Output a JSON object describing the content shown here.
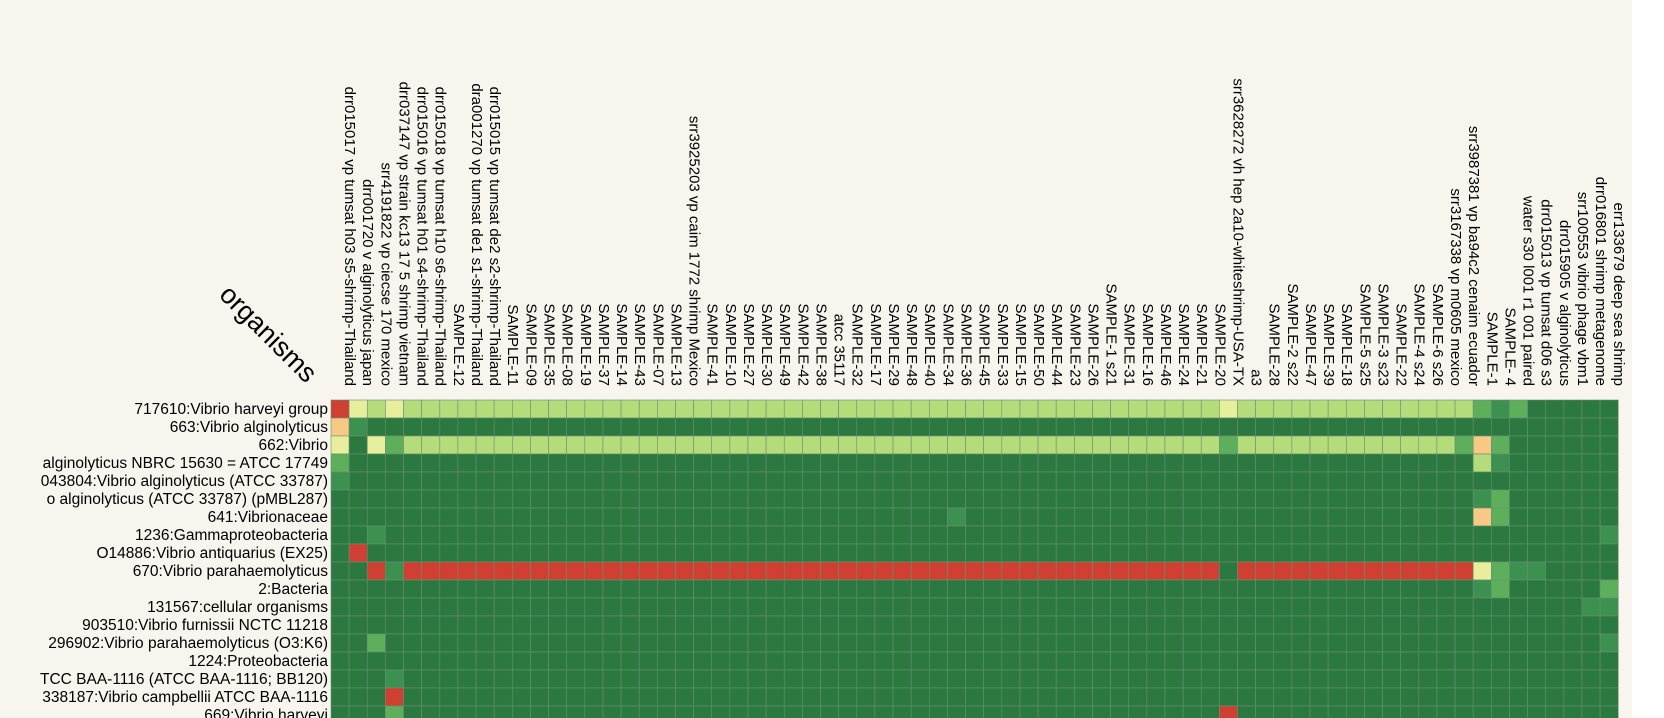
{
  "colors": {
    "background": "#f7f5ee",
    "dark": "#2b7840",
    "mid": "#3c9150",
    "green": "#5daf5b",
    "lightgreen": "#b5dc7a",
    "yellow": "#e8ef9c",
    "orange": "#f7c985",
    "red": "#cf3f32",
    "grid": "#6a8f6f"
  },
  "chart_data": {
    "type": "heatmap",
    "corner_label": "organisms",
    "columns": [
      "drr015017 vp tumsat h03 s5-shrimp-Thailand",
      "drr001720 v alginolyticus japan",
      "srr4191822 vp ciecse 170 mexico",
      "drr037147 vp strain kc13 17 5 shrimp vietnam",
      "drr015016 vp tumsat h01 s4-shrimp-Thailand",
      "drr015018 vp tumsat h10 s6-shrimp-Thailand",
      "SAMPLE-12",
      "dra001270 vp tumsat de1 s1-shrimp-Thailand",
      "drr015015 vp tumsat de2 s2-shrimp-Thailand",
      "SAMPLE-11",
      "SAMPLE-09",
      "SAMPLE-35",
      "SAMPLE-08",
      "SAMPLE-19",
      "SAMPLE-37",
      "SAMPLE-14",
      "SAMPLE-43",
      "SAMPLE-07",
      "SAMPLE-13",
      "srr3925203 vp caim 1772 shrimp Mexico",
      "SAMPLE-41",
      "SAMPLE-10",
      "SAMPLE-27",
      "SAMPLE-30",
      "SAMPLE-49",
      "SAMPLE-42",
      "SAMPLE-38",
      "atcc 35117",
      "SAMPLE-32",
      "SAMPLE-17",
      "SAMPLE-29",
      "SAMPLE-48",
      "SAMPLE-40",
      "SAMPLE-34",
      "SAMPLE-36",
      "SAMPLE-45",
      "SAMPLE-33",
      "SAMPLE-15",
      "SAMPLE-50",
      "SAMPLE-44",
      "SAMPLE-23",
      "SAMPLE-26",
      "SAMPLE-1 s21",
      "SAMPLE-31",
      "SAMPLE-16",
      "SAMPLE-46",
      "SAMPLE-24",
      "SAMPLE-21",
      "SAMPLE-20",
      "srr3628272 vh hep 2a10-whiteshrimp-USA-TX",
      "a3",
      "SAMPLE-28",
      "SAMPLE-2 s22",
      "SAMPLE-47",
      "SAMPLE-39",
      "SAMPLE-18",
      "SAMPLE-5 s25",
      "SAMPLE-3 s23",
      "SAMPLE-22",
      "SAMPLE-4 s24",
      "SAMPLE-6 s26",
      "srr3167338 vp m0605 mexico",
      "srr3987381 vp ba94c2 cenaim ecuador",
      "SAMPLE-1",
      "SAMPLE- 4",
      "water s30 l001 r1 001 paired",
      "drr015013 vp tumsat d06 s3",
      "drr015905 v alginolyticus",
      "srr100553 vibrio phage vbm1",
      "drr016801 shrimp metagenome",
      "err133679 deep sea shrimp"
    ],
    "rows": [
      "717610:Vibrio harveyi group",
      "663:Vibrio alginolyticus",
      "662:Vibrio",
      "alginolyticus NBRC 15630 = ATCC 17749",
      "043804:Vibrio alginolyticus (ATCC 33787)",
      "o alginolyticus (ATCC 33787) (pMBL287)",
      "641:Vibrionaceae",
      "1236:Gammaproteobacteria",
      "O14886:Vibrio antiquarius (EX25)",
      "670:Vibrio parahaemolyticus",
      "2:Bacteria",
      "131567:cellular organisms",
      "903510:Vibrio furnissii NCTC 11218",
      "296902:Vibrio parahaemolyticus (O3:K6)",
      "1224:Proteobacteria",
      "TCC BAA-1116 (ATCC BAA-1116; BB120)",
      "338187:Vibrio campbellii ATCC BAA-1116",
      "669:Vibrio harveyi"
    ],
    "value_scale": {
      "0": "dark",
      "1": "mid",
      "2": "green",
      "3": "lightgreen",
      "4": "yellow",
      "5": "orange",
      "6": "red"
    },
    "values": [
      [
        6,
        4,
        3,
        4,
        3,
        3,
        3,
        3,
        3,
        3,
        3,
        3,
        3,
        3,
        3,
        3,
        3,
        3,
        3,
        3,
        3,
        3,
        3,
        3,
        3,
        3,
        3,
        3,
        3,
        3,
        3,
        3,
        3,
        3,
        3,
        3,
        3,
        3,
        3,
        3,
        3,
        3,
        3,
        3,
        3,
        3,
        3,
        3,
        3,
        4,
        3,
        3,
        3,
        3,
        3,
        3,
        3,
        3,
        3,
        3,
        3,
        3,
        3,
        2,
        1,
        2,
        0,
        0,
        0,
        0,
        0
      ],
      [
        5,
        1,
        0,
        0,
        0,
        0,
        0,
        0,
        0,
        0,
        0,
        0,
        0,
        0,
        0,
        0,
        0,
        0,
        0,
        0,
        0,
        0,
        0,
        0,
        0,
        0,
        0,
        0,
        0,
        0,
        0,
        0,
        0,
        0,
        0,
        0,
        0,
        0,
        0,
        0,
        0,
        0,
        0,
        0,
        0,
        0,
        0,
        0,
        0,
        0,
        0,
        0,
        0,
        0,
        0,
        0,
        0,
        0,
        0,
        0,
        0,
        0,
        0,
        0,
        0,
        0,
        0,
        0,
        0,
        0,
        0
      ],
      [
        4,
        0,
        4,
        2,
        3,
        3,
        3,
        3,
        3,
        3,
        3,
        3,
        3,
        3,
        3,
        3,
        3,
        3,
        3,
        3,
        3,
        3,
        3,
        3,
        3,
        3,
        3,
        3,
        3,
        3,
        3,
        3,
        3,
        3,
        3,
        3,
        3,
        3,
        3,
        3,
        3,
        3,
        3,
        3,
        3,
        3,
        3,
        3,
        3,
        2,
        3,
        3,
        3,
        3,
        3,
        3,
        3,
        3,
        3,
        3,
        3,
        3,
        2,
        5,
        2,
        0,
        0,
        0,
        0,
        0,
        0
      ],
      [
        2,
        0,
        0,
        0,
        0,
        0,
        0,
        0,
        0,
        0,
        0,
        0,
        0,
        0,
        0,
        0,
        0,
        0,
        0,
        0,
        0,
        0,
        0,
        0,
        0,
        0,
        0,
        0,
        0,
        0,
        0,
        0,
        0,
        0,
        0,
        0,
        0,
        0,
        0,
        0,
        0,
        0,
        0,
        0,
        0,
        0,
        0,
        0,
        0,
        0,
        0,
        0,
        0,
        0,
        0,
        0,
        0,
        0,
        0,
        0,
        0,
        0,
        0,
        3,
        1,
        0,
        0,
        0,
        0,
        0,
        0
      ],
      [
        1,
        0,
        0,
        0,
        0,
        0,
        0,
        0,
        0,
        0,
        0,
        0,
        0,
        0,
        0,
        0,
        0,
        0,
        0,
        0,
        0,
        0,
        0,
        0,
        0,
        0,
        0,
        0,
        0,
        0,
        0,
        0,
        0,
        0,
        0,
        0,
        0,
        0,
        0,
        0,
        0,
        0,
        0,
        0,
        0,
        0,
        0,
        0,
        0,
        0,
        0,
        0,
        0,
        0,
        0,
        0,
        0,
        0,
        0,
        0,
        0,
        0,
        0,
        0,
        0,
        0,
        0,
        0,
        0,
        0,
        0
      ],
      [
        0,
        0,
        0,
        0,
        0,
        0,
        0,
        0,
        0,
        0,
        0,
        0,
        0,
        0,
        0,
        0,
        0,
        0,
        0,
        0,
        0,
        0,
        0,
        0,
        0,
        0,
        0,
        0,
        0,
        0,
        0,
        0,
        0,
        0,
        0,
        0,
        0,
        0,
        0,
        0,
        0,
        0,
        0,
        0,
        0,
        0,
        0,
        0,
        0,
        0,
        0,
        0,
        0,
        0,
        0,
        0,
        0,
        0,
        0,
        0,
        0,
        0,
        0,
        1,
        2,
        0,
        0,
        0,
        0,
        0,
        0
      ],
      [
        0,
        0,
        0,
        0,
        0,
        0,
        0,
        0,
        0,
        0,
        0,
        0,
        0,
        0,
        0,
        0,
        0,
        0,
        0,
        0,
        0,
        0,
        0,
        0,
        0,
        0,
        0,
        0,
        0,
        0,
        0,
        0,
        0,
        0,
        1,
        0,
        0,
        0,
        0,
        0,
        0,
        0,
        0,
        0,
        0,
        0,
        0,
        0,
        0,
        0,
        0,
        0,
        0,
        0,
        0,
        0,
        0,
        0,
        0,
        0,
        0,
        0,
        0,
        5,
        2,
        0,
        0,
        0,
        0,
        0,
        0
      ],
      [
        0,
        0,
        1,
        0,
        0,
        0,
        0,
        0,
        0,
        0,
        0,
        0,
        0,
        0,
        0,
        0,
        0,
        0,
        0,
        0,
        0,
        0,
        0,
        0,
        0,
        0,
        0,
        0,
        0,
        0,
        0,
        0,
        0,
        0,
        0,
        0,
        0,
        0,
        0,
        0,
        0,
        0,
        0,
        0,
        0,
        0,
        0,
        0,
        0,
        0,
        0,
        0,
        0,
        0,
        0,
        0,
        0,
        0,
        0,
        0,
        0,
        0,
        0,
        0,
        0,
        0,
        0,
        0,
        0,
        0,
        1
      ],
      [
        0,
        6,
        0,
        0,
        0,
        0,
        0,
        0,
        0,
        0,
        0,
        0,
        0,
        0,
        0,
        0,
        0,
        0,
        0,
        0,
        0,
        0,
        0,
        0,
        0,
        0,
        0,
        0,
        0,
        0,
        0,
        0,
        0,
        0,
        0,
        0,
        0,
        0,
        0,
        0,
        0,
        0,
        0,
        0,
        0,
        0,
        0,
        0,
        0,
        0,
        0,
        0,
        0,
        0,
        0,
        0,
        0,
        0,
        0,
        0,
        0,
        0,
        0,
        0,
        0,
        0,
        0,
        0,
        0,
        0,
        0
      ],
      [
        0,
        0,
        6,
        1,
        6,
        6,
        6,
        6,
        6,
        6,
        6,
        6,
        6,
        6,
        6,
        6,
        6,
        6,
        6,
        6,
        6,
        6,
        6,
        6,
        6,
        6,
        6,
        6,
        6,
        6,
        6,
        6,
        6,
        6,
        6,
        6,
        6,
        6,
        6,
        6,
        6,
        6,
        6,
        6,
        6,
        6,
        6,
        6,
        6,
        0,
        6,
        6,
        6,
        6,
        6,
        6,
        6,
        6,
        6,
        6,
        6,
        6,
        6,
        4,
        2,
        1,
        1,
        0,
        0,
        0,
        0
      ],
      [
        0,
        0,
        0,
        0,
        0,
        0,
        0,
        0,
        0,
        0,
        0,
        0,
        0,
        0,
        0,
        0,
        0,
        0,
        0,
        0,
        0,
        0,
        0,
        0,
        0,
        0,
        0,
        0,
        0,
        0,
        0,
        0,
        0,
        0,
        0,
        0,
        0,
        0,
        0,
        0,
        0,
        0,
        0,
        0,
        0,
        0,
        0,
        0,
        0,
        0,
        0,
        0,
        0,
        0,
        0,
        0,
        0,
        0,
        0,
        0,
        0,
        0,
        0,
        1,
        2,
        0,
        0,
        0,
        0,
        0,
        2
      ],
      [
        0,
        0,
        0,
        0,
        0,
        0,
        0,
        0,
        0,
        0,
        0,
        0,
        0,
        0,
        0,
        0,
        0,
        0,
        0,
        0,
        0,
        0,
        0,
        0,
        0,
        0,
        0,
        0,
        0,
        0,
        0,
        0,
        0,
        0,
        0,
        0,
        0,
        0,
        0,
        0,
        0,
        0,
        0,
        0,
        0,
        0,
        0,
        0,
        0,
        0,
        0,
        0,
        0,
        0,
        0,
        0,
        0,
        0,
        0,
        0,
        0,
        0,
        0,
        0,
        0,
        0,
        0,
        0,
        0,
        1,
        1
      ],
      [
        0,
        0,
        0,
        0,
        0,
        0,
        0,
        0,
        0,
        0,
        0,
        0,
        0,
        0,
        0,
        0,
        0,
        0,
        0,
        0,
        0,
        0,
        0,
        0,
        0,
        0,
        0,
        0,
        0,
        0,
        0,
        0,
        0,
        0,
        0,
        0,
        0,
        0,
        0,
        0,
        0,
        0,
        0,
        0,
        0,
        0,
        0,
        0,
        0,
        0,
        0,
        0,
        0,
        0,
        0,
        0,
        0,
        0,
        0,
        0,
        0,
        0,
        0,
        0,
        0,
        0,
        0,
        0,
        0,
        0,
        0
      ],
      [
        0,
        0,
        2,
        0,
        0,
        0,
        0,
        0,
        0,
        0,
        0,
        0,
        0,
        0,
        0,
        0,
        0,
        0,
        0,
        0,
        0,
        0,
        0,
        0,
        0,
        0,
        0,
        0,
        0,
        0,
        0,
        0,
        0,
        0,
        0,
        0,
        0,
        0,
        0,
        0,
        0,
        0,
        0,
        0,
        0,
        0,
        0,
        0,
        0,
        0,
        0,
        0,
        0,
        0,
        0,
        0,
        0,
        0,
        0,
        0,
        0,
        0,
        0,
        0,
        0,
        0,
        0,
        0,
        0,
        0,
        1
      ],
      [
        0,
        0,
        0,
        0,
        0,
        0,
        0,
        0,
        0,
        0,
        0,
        0,
        0,
        0,
        0,
        0,
        0,
        0,
        0,
        0,
        0,
        0,
        0,
        0,
        0,
        0,
        0,
        0,
        0,
        0,
        0,
        0,
        0,
        0,
        0,
        0,
        0,
        0,
        0,
        0,
        0,
        0,
        0,
        0,
        0,
        0,
        0,
        0,
        0,
        0,
        0,
        0,
        0,
        0,
        0,
        0,
        0,
        0,
        0,
        0,
        0,
        0,
        0,
        0,
        0,
        0,
        0,
        0,
        0,
        0,
        0
      ],
      [
        0,
        0,
        0,
        1,
        0,
        0,
        0,
        0,
        0,
        0,
        0,
        0,
        0,
        0,
        0,
        0,
        0,
        0,
        0,
        0,
        0,
        0,
        0,
        0,
        0,
        0,
        0,
        0,
        0,
        0,
        0,
        0,
        0,
        0,
        0,
        0,
        0,
        0,
        0,
        0,
        0,
        0,
        0,
        0,
        0,
        0,
        0,
        0,
        0,
        0,
        0,
        0,
        0,
        0,
        0,
        0,
        0,
        0,
        0,
        0,
        0,
        0,
        0,
        0,
        0,
        0,
        0,
        0,
        0,
        0,
        0
      ],
      [
        0,
        0,
        0,
        6,
        0,
        0,
        0,
        0,
        0,
        0,
        0,
        0,
        0,
        0,
        0,
        0,
        0,
        0,
        0,
        0,
        0,
        0,
        0,
        0,
        0,
        0,
        0,
        0,
        0,
        0,
        0,
        0,
        0,
        0,
        0,
        0,
        0,
        0,
        0,
        0,
        0,
        0,
        0,
        0,
        0,
        0,
        0,
        0,
        0,
        0,
        0,
        0,
        0,
        0,
        0,
        0,
        0,
        0,
        0,
        0,
        0,
        0,
        0,
        0,
        0,
        0,
        0,
        0,
        0,
        0,
        0
      ],
      [
        0,
        0,
        0,
        2,
        0,
        0,
        0,
        0,
        0,
        0,
        0,
        0,
        0,
        0,
        0,
        0,
        0,
        0,
        0,
        0,
        0,
        0,
        0,
        0,
        0,
        0,
        0,
        0,
        0,
        0,
        0,
        0,
        0,
        0,
        0,
        0,
        0,
        0,
        0,
        0,
        0,
        0,
        0,
        0,
        0,
        0,
        0,
        0,
        0,
        6,
        0,
        0,
        0,
        0,
        0,
        0,
        0,
        0,
        0,
        0,
        0,
        0,
        0,
        0,
        0,
        0,
        0,
        0,
        0,
        0,
        0
      ]
    ]
  }
}
